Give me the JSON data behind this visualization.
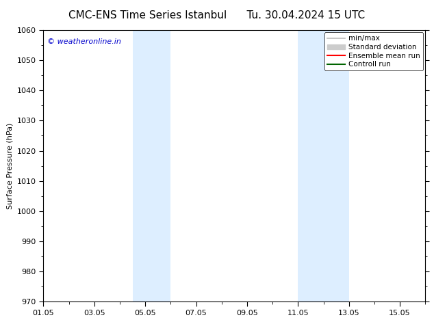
{
  "title_left": "CMC-ENS Time Series Istanbul",
  "title_right": "Tu. 30.04.2024 15 UTC",
  "ylabel": "Surface Pressure (hPa)",
  "ylim": [
    970,
    1060
  ],
  "yticks": [
    970,
    980,
    990,
    1000,
    1010,
    1020,
    1030,
    1040,
    1050,
    1060
  ],
  "xlim": [
    0,
    15
  ],
  "xtick_labels": [
    "01.05",
    "03.05",
    "05.05",
    "07.05",
    "09.05",
    "11.05",
    "13.05",
    "15.05"
  ],
  "xtick_positions": [
    0,
    2,
    4,
    6,
    8,
    10,
    12,
    14
  ],
  "shade_bands": [
    {
      "x_start": 3.5,
      "x_end": 5.0
    },
    {
      "x_start": 10.0,
      "x_end": 12.0
    }
  ],
  "shade_color": "#ddeeff",
  "watermark_text": "© weatheronline.in",
  "watermark_color": "#0000cc",
  "legend_entries": [
    {
      "label": "min/max",
      "color": "#bbbbbb",
      "lw": 1.2,
      "type": "line"
    },
    {
      "label": "Standard deviation",
      "color": "#cccccc",
      "lw": 8,
      "type": "patch"
    },
    {
      "label": "Ensemble mean run",
      "color": "#ff0000",
      "lw": 1.5,
      "type": "line"
    },
    {
      "label": "Controll run",
      "color": "#006400",
      "lw": 1.5,
      "type": "line"
    }
  ],
  "bg_color": "#ffffff",
  "title_fontsize": 11,
  "axis_fontsize": 8,
  "tick_fontsize": 8,
  "legend_fontsize": 7.5
}
